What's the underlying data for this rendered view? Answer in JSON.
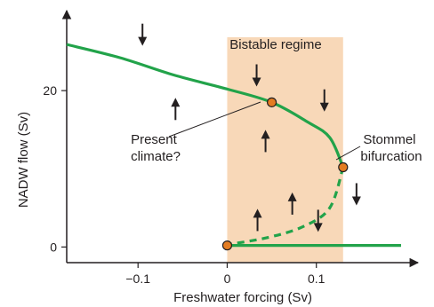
{
  "chart_data": {
    "type": "line",
    "xlabel": "Freshwater forcing (Sv)",
    "ylabel": "NADW flow (Sv)",
    "xlim": [
      -0.18,
      0.21
    ],
    "ylim": [
      -2,
      30
    ],
    "x_ticks": [
      {
        "value": -0.1,
        "label": "−0.1"
      },
      {
        "value": 0,
        "label": "0"
      },
      {
        "value": 0.1,
        "label": "0.1"
      }
    ],
    "y_ticks": [
      {
        "value": 0,
        "label": "0"
      },
      {
        "value": 20,
        "label": "20"
      }
    ],
    "grid": false,
    "bistable_region": {
      "x_start": 0,
      "x_end": 0.13,
      "label": "Bistable regime"
    },
    "series": [
      {
        "style": "solid",
        "color": "#22a34a",
        "points": [
          [
            -0.18,
            25.9
          ],
          [
            -0.12,
            24.2
          ],
          [
            -0.06,
            22.0
          ],
          [
            0.0,
            20.2
          ],
          [
            0.05,
            18.5
          ],
          [
            0.09,
            16.0
          ],
          [
            0.115,
            14.0
          ],
          [
            0.13,
            10.2
          ]
        ]
      },
      {
        "style": "dashed",
        "color": "#22a34a",
        "points": [
          [
            0.13,
            10.2
          ],
          [
            0.115,
            5.0
          ],
          [
            0.085,
            2.6
          ],
          [
            0.045,
            1.2
          ],
          [
            0.0,
            0.3
          ]
        ]
      },
      {
        "style": "solid",
        "color": "#22a34a",
        "points": [
          [
            0.0,
            0.2
          ],
          [
            0.195,
            0.2
          ]
        ]
      }
    ],
    "points": [
      {
        "x": 0.05,
        "y": 18.5,
        "color": "#e37c22"
      },
      {
        "x": 0.13,
        "y": 10.2,
        "color": "#e37c22"
      },
      {
        "x": 0.0,
        "y": 0.2,
        "color": "#e37c22"
      }
    ],
    "annotations": [
      {
        "text": "Present climate?",
        "lines": [
          "Present",
          "climate?"
        ]
      },
      {
        "text": "Stommel bifurcation",
        "lines": [
          "Stommel",
          "bifurcation"
        ]
      }
    ],
    "arrows": [
      {
        "x": -0.095,
        "y": 27.2,
        "dir": "down"
      },
      {
        "x": 0.033,
        "y": 22.0,
        "dir": "down"
      },
      {
        "x": 0.109,
        "y": 18.8,
        "dir": "down"
      },
      {
        "x": 0.145,
        "y": 6.8,
        "dir": "down"
      },
      {
        "x": 0.102,
        "y": 3.4,
        "dir": "down"
      },
      {
        "x": -0.058,
        "y": 17.6,
        "dir": "up"
      },
      {
        "x": 0.043,
        "y": 13.5,
        "dir": "up"
      },
      {
        "x": 0.073,
        "y": 5.5,
        "dir": "up"
      },
      {
        "x": 0.034,
        "y": 3.4,
        "dir": "up"
      }
    ]
  }
}
